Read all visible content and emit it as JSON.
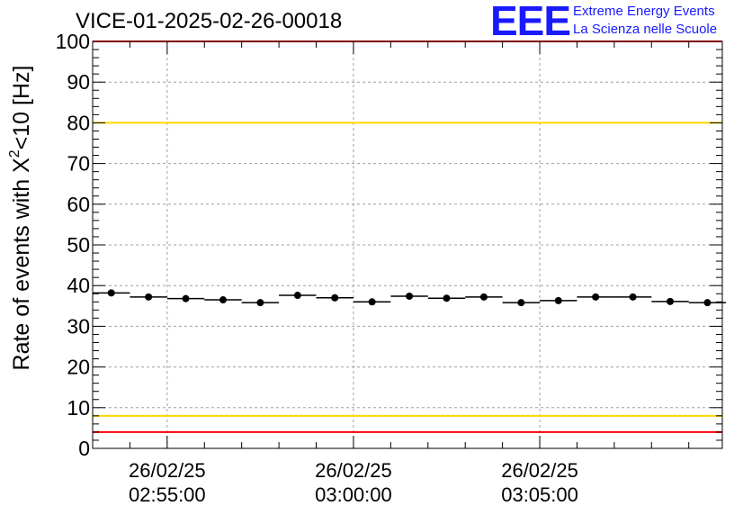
{
  "header": {
    "title": "VICE-01-2025-02-26-00018",
    "logo_letters": "EEE",
    "logo_line_1": "Extreme Energy Events",
    "logo_line_2": "La Scienza nelle Scuole"
  },
  "colors": {
    "threshold_red": "#ff0000",
    "threshold_yellow": "#ffd700",
    "logo_blue": "#1a1aff",
    "markers": "#000000",
    "grid": "#a0a0a0"
  },
  "chart_data": {
    "type": "scatter",
    "title": "VICE-01-2025-02-26-00018",
    "ylabel_main": "Rate of events with X",
    "ylabel_sup": "2",
    "ylabel_tail": "<10 [Hz]",
    "xlabel": "",
    "ylim": [
      0,
      100
    ],
    "y_ticks": [
      0,
      10,
      20,
      30,
      40,
      50,
      60,
      70,
      80,
      90,
      100
    ],
    "x_range_minutes": [
      -2.0,
      14.9
    ],
    "x_ticks": [
      {
        "minute": 0,
        "date": "26/02/25",
        "time": "02:55:00"
      },
      {
        "minute": 5,
        "date": "26/02/25",
        "time": "03:00:00"
      },
      {
        "minute": 10,
        "date": "26/02/25",
        "time": "03:05:00"
      }
    ],
    "grid": true,
    "threshold_lines": [
      {
        "value": 100,
        "color": "red"
      },
      {
        "value": 80,
        "color": "yellow"
      },
      {
        "value": 8,
        "color": "yellow"
      },
      {
        "value": 4,
        "color": "red"
      }
    ],
    "bin_width_minutes": 1.0,
    "series": [
      {
        "x": [
          -1.5,
          -0.5,
          0.5,
          1.5,
          2.5,
          3.5,
          4.5,
          5.5,
          6.5,
          7.5,
          8.5,
          9.5,
          10.5,
          11.5,
          12.5,
          13.5,
          14.5
        ],
        "values": [
          38.2,
          37.2,
          36.8,
          36.5,
          35.8,
          37.6,
          37.0,
          36.0,
          37.4,
          36.9,
          37.2,
          35.8,
          36.3,
          37.2,
          37.2,
          36.1,
          35.8
        ]
      }
    ]
  }
}
